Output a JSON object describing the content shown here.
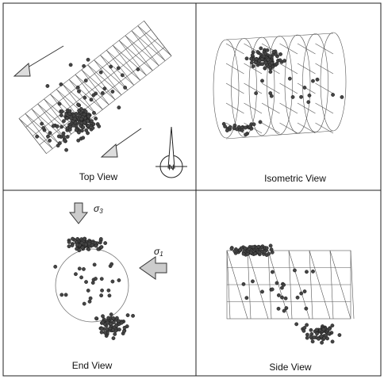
{
  "panels": [
    {
      "label": "Top View"
    },
    {
      "label": "Isometric View"
    },
    {
      "label": "End View"
    },
    {
      "label": "Side View"
    }
  ],
  "annotations": {
    "north": "N",
    "sigma3": {
      "symbol": "σ",
      "subscript": "3"
    },
    "sigma1": {
      "symbol": "σ",
      "subscript": "1"
    }
  }
}
